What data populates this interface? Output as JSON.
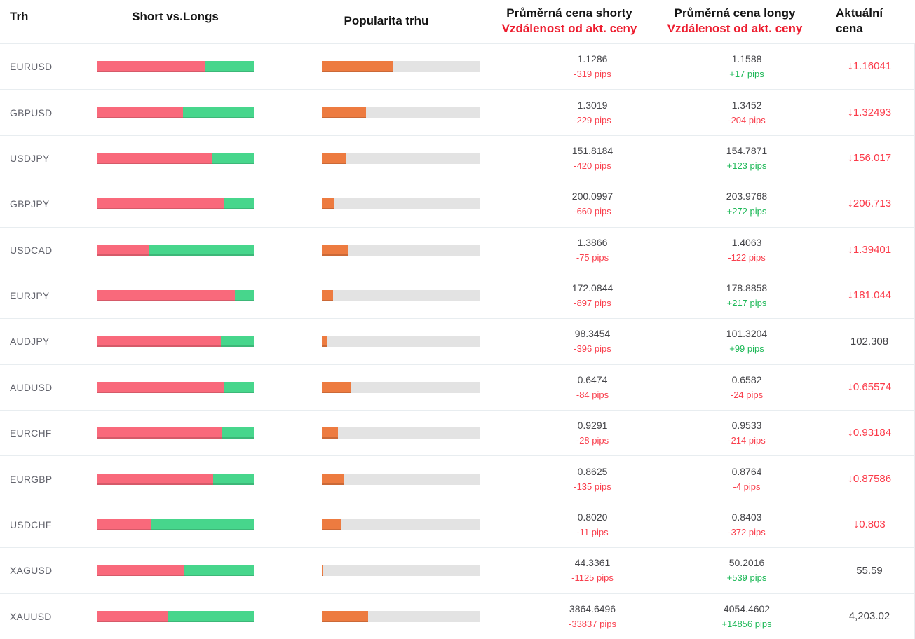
{
  "header": {
    "market": "Trh",
    "ratio": "Short vs.Longs",
    "popularity": "Popularita trhu",
    "short_price_line1": "Průměrná cena shorty",
    "short_price_line2": "Vzdálenost od akt. ceny",
    "long_price_line1": "Průměrná cena longy",
    "long_price_line2": "Vzdálenost od akt. ceny",
    "current_line1": "Aktuální",
    "current_line2": "cena"
  },
  "colors": {
    "short_red": "#F9697B",
    "long_green": "#47D68C",
    "popularity_orange": "#ED7B40",
    "track_gray": "#E3E3E3",
    "pips_red": "#F9404E",
    "pips_green": "#1DB857",
    "price_red": "#FB3A49",
    "header_red": "#ED1C2E"
  },
  "rows": [
    {
      "market": "EURUSD",
      "short_pct": 69,
      "popularity_pct": 45,
      "short_price": "1.1286",
      "short_dist": "-319 pips",
      "long_price": "1.1588",
      "long_dist": "+17 pips",
      "current": "1.16041",
      "direction": "down"
    },
    {
      "market": "GBPUSD",
      "short_pct": 55,
      "popularity_pct": 28,
      "short_price": "1.3019",
      "short_dist": "-229 pips",
      "long_price": "1.3452",
      "long_dist": "-204 pips",
      "current": "1.32493",
      "direction": "down"
    },
    {
      "market": "USDJPY",
      "short_pct": 73,
      "popularity_pct": 15,
      "short_price": "151.8184",
      "short_dist": "-420 pips",
      "long_price": "154.7871",
      "long_dist": "+123 pips",
      "current": "156.017",
      "direction": "down"
    },
    {
      "market": "GBPJPY",
      "short_pct": 81,
      "popularity_pct": 8,
      "short_price": "200.0997",
      "short_dist": "-660 pips",
      "long_price": "203.9768",
      "long_dist": "+272 pips",
      "current": "206.713",
      "direction": "down"
    },
    {
      "market": "USDCAD",
      "short_pct": 33,
      "popularity_pct": 17,
      "short_price": "1.3866",
      "short_dist": "-75 pips",
      "long_price": "1.4063",
      "long_dist": "-122 pips",
      "current": "1.39401",
      "direction": "down"
    },
    {
      "market": "EURJPY",
      "short_pct": 88,
      "popularity_pct": 7,
      "short_price": "172.0844",
      "short_dist": "-897 pips",
      "long_price": "178.8858",
      "long_dist": "+217 pips",
      "current": "181.044",
      "direction": "down"
    },
    {
      "market": "AUDJPY",
      "short_pct": 79,
      "popularity_pct": 3,
      "short_price": "98.3454",
      "short_dist": "-396 pips",
      "long_price": "101.3204",
      "long_dist": "+99 pips",
      "current": "102.308",
      "direction": "none"
    },
    {
      "market": "AUDUSD",
      "short_pct": 81,
      "popularity_pct": 18,
      "short_price": "0.6474",
      "short_dist": "-84 pips",
      "long_price": "0.6582",
      "long_dist": "-24 pips",
      "current": "0.65574",
      "direction": "down"
    },
    {
      "market": "EURCHF",
      "short_pct": 80,
      "popularity_pct": 10,
      "short_price": "0.9291",
      "short_dist": "-28 pips",
      "long_price": "0.9533",
      "long_dist": "-214 pips",
      "current": "0.93184",
      "direction": "down"
    },
    {
      "market": "EURGBP",
      "short_pct": 74,
      "popularity_pct": 14,
      "short_price": "0.8625",
      "short_dist": "-135 pips",
      "long_price": "0.8764",
      "long_dist": "-4 pips",
      "current": "0.87586",
      "direction": "down"
    },
    {
      "market": "USDCHF",
      "short_pct": 35,
      "popularity_pct": 12,
      "short_price": "0.8020",
      "short_dist": "-11 pips",
      "long_price": "0.8403",
      "long_dist": "-372 pips",
      "current": "0.803",
      "direction": "down"
    },
    {
      "market": "XAGUSD",
      "short_pct": 56,
      "popularity_pct": 1,
      "short_price": "44.3361",
      "short_dist": "-1125 pips",
      "long_price": "50.2016",
      "long_dist": "+539 pips",
      "current": "55.59",
      "direction": "none"
    },
    {
      "market": "XAUUSD",
      "short_pct": 45,
      "popularity_pct": 29,
      "short_price": "3864.6496",
      "short_dist": "-33837 pips",
      "long_price": "4054.4602",
      "long_dist": "+14856 pips",
      "current": "4,203.02",
      "direction": "none"
    }
  ]
}
